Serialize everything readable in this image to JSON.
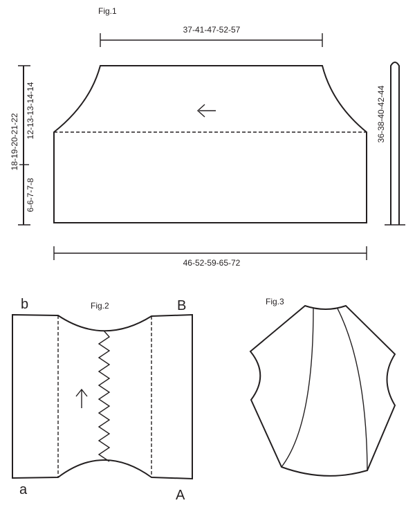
{
  "fig1": {
    "title": "Fig.1",
    "top_width": "37-41-47-52-57",
    "bottom_width": "46-52-59-65-72",
    "total_height": "18-19-20-21-22",
    "upper_height": "12-13-13-14-14",
    "lower_height": "6-6-7-7-8",
    "band_length": "36-38-40-42-44",
    "arrow": "←"
  },
  "fig2": {
    "title": "Fig.2",
    "corner_top_left": "b",
    "corner_top_right": "B",
    "corner_bottom_left": "a",
    "corner_bottom_right": "A",
    "arrow": "↑"
  },
  "fig3": {
    "title": "Fig.3"
  }
}
